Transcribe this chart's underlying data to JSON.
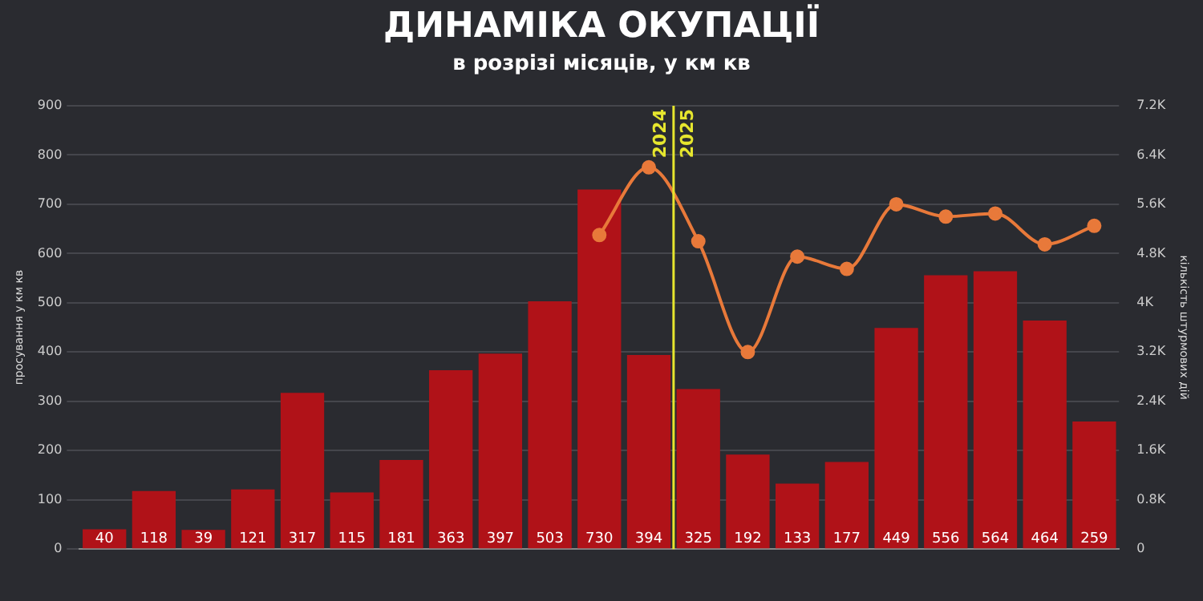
{
  "chart_data": {
    "type": "bar",
    "title": "ДИНАМІКА ОКУПАЦІЇ",
    "subtitle": "в розрізі місяців, у км кв",
    "ylabel": "просування у км кв",
    "y2label": "кількість штурмових дій",
    "categories": [
      null,
      null,
      null,
      null,
      null,
      null,
      null,
      null,
      null,
      null,
      null,
      null,
      null,
      null,
      null,
      null,
      null,
      null,
      null,
      null,
      null
    ],
    "series": [
      {
        "color": "#b01218",
        "values": [
          40,
          118,
          39,
          121,
          317,
          115,
          181,
          363,
          397,
          503,
          730,
          394,
          325,
          192,
          133,
          177,
          449,
          556,
          564,
          464,
          259
        ],
        "value_labels": [
          "40",
          "118",
          "39",
          "121",
          "317",
          "115",
          "181",
          "363",
          "397",
          "503",
          "730",
          "394",
          "325",
          "192",
          "133",
          "177",
          "449",
          "556",
          "564",
          "464",
          "259"
        ]
      },
      {
        "type": "line",
        "axis": "y2",
        "color": "#e8793a",
        "values": [
          null,
          null,
          null,
          null,
          null,
          null,
          null,
          null,
          null,
          null,
          5100,
          6200,
          5000,
          3200,
          4750,
          4550,
          5600,
          5400,
          5450,
          4950,
          5250
        ]
      }
    ],
    "ylim": [
      0,
      900
    ],
    "yticks": [
      0,
      100,
      200,
      300,
      400,
      500,
      600,
      700,
      800,
      900
    ],
    "y2lim": [
      0,
      7200
    ],
    "y2ticks": [
      {
        "value": 0,
        "label": "0"
      },
      {
        "value": 800,
        "label": "0.8K"
      },
      {
        "value": 1600,
        "label": "1.6K"
      },
      {
        "value": 2400,
        "label": "2.4K"
      },
      {
        "value": 3200,
        "label": "3.2K"
      },
      {
        "value": 4000,
        "label": "4K"
      },
      {
        "value": 4800,
        "label": "4.8K"
      },
      {
        "value": 5600,
        "label": "5.6K"
      },
      {
        "value": 6400,
        "label": "6.4K"
      },
      {
        "value": 7200,
        "label": "7.2K"
      }
    ],
    "grid": "y",
    "legend": false,
    "marker": "circle",
    "line_style": "solid",
    "annotations": [
      "2024",
      "2025"
    ]
  }
}
